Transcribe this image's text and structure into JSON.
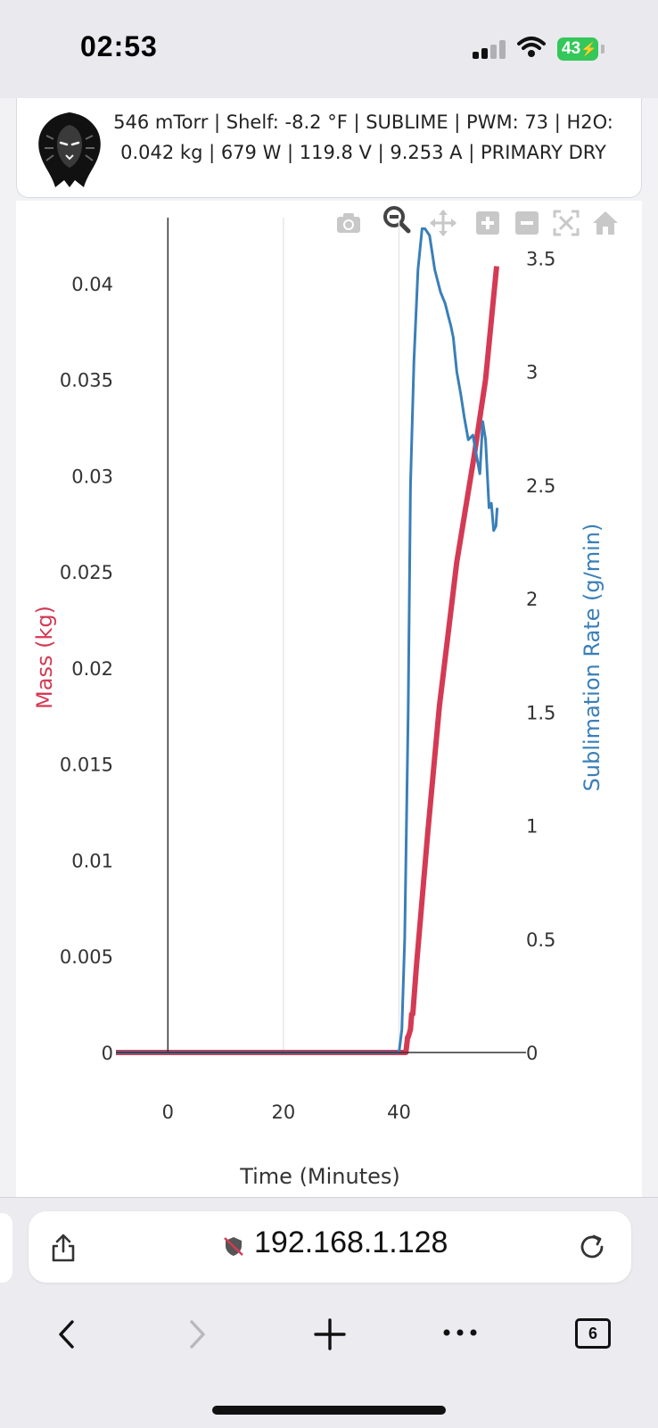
{
  "status_bar": {
    "time": "02:53",
    "battery": "43"
  },
  "header": {
    "status_line": "546 mTorr | Shelf: -8.2 °F | SUBLIME | PWM: 73 | H2O: 0.042 kg | 679 W | 119.8 V | 9.253 A | PRIMARY DRY"
  },
  "modebar": {
    "buttons": [
      "camera-icon",
      "zoom-icon",
      "pan-icon",
      "zoom-in-icon",
      "zoom-out-icon",
      "autoscale-icon",
      "reset-axes-icon"
    ]
  },
  "colors": {
    "mass": "#d43a54",
    "rate": "#3a7fb8"
  },
  "chart_data": {
    "type": "line",
    "xlabel": "Time (Minutes)",
    "ylabel_left": "Mass (kg)",
    "ylabel_right": "Sublimation Rate (g/min)",
    "xlim": [
      -9,
      62
    ],
    "ylim_left": [
      0,
      0.0425
    ],
    "ylim_right": [
      0,
      3.6
    ],
    "x_ticks": [
      "0",
      "20",
      "40"
    ],
    "x_tick_values": [
      0,
      20,
      40
    ],
    "y_left_ticks": [
      "0",
      "0.005",
      "0.01",
      "0.015",
      "0.02",
      "0.025",
      "0.03",
      "0.035",
      "0.04"
    ],
    "y_left_tick_values": [
      0,
      0.005,
      0.01,
      0.015,
      0.02,
      0.025,
      0.03,
      0.035,
      0.04
    ],
    "y_right_ticks": [
      "0",
      "0.5",
      "1",
      "1.5",
      "2",
      "2.5",
      "3",
      "3.5"
    ],
    "y_right_tick_values": [
      0,
      0.5,
      1,
      1.5,
      2,
      2.5,
      3,
      3.5
    ],
    "series": [
      {
        "name": "Mass",
        "axis": "left",
        "x": [
          -9,
          41.2,
          41.5,
          41.6,
          42,
          42.2,
          42.4,
          43,
          45,
          47,
          50,
          53,
          55,
          56.9
        ],
        "y": [
          0,
          0,
          0.0008,
          0.0008,
          0.0012,
          0.002,
          0.002,
          0.0044,
          0.0115,
          0.018,
          0.0255,
          0.031,
          0.035,
          0.0409
        ]
      },
      {
        "name": "Sublimation Rate",
        "axis": "right",
        "x": [
          -9,
          40,
          40.5,
          41,
          41.6,
          42,
          42.6,
          43.3,
          44,
          44.5,
          45.3,
          46.2,
          47.2,
          48,
          48.5,
          49,
          49.4,
          50,
          50.7,
          51.3,
          52,
          52.8,
          53.5,
          54,
          54.5,
          55,
          55.6,
          56,
          56.4,
          56.8,
          57
        ],
        "y": [
          0,
          0,
          0.1,
          0.5,
          1.5,
          2.5,
          3.05,
          3.45,
          3.63,
          3.63,
          3.6,
          3.45,
          3.35,
          3.3,
          3.25,
          3.2,
          3.15,
          3.0,
          2.9,
          2.8,
          2.7,
          2.72,
          2.62,
          2.55,
          2.78,
          2.7,
          2.4,
          2.42,
          2.3,
          2.32,
          2.4
        ]
      }
    ]
  },
  "address_bar": {
    "url": "192.168.1.128"
  },
  "toolbar": {
    "tab_count": "6"
  }
}
